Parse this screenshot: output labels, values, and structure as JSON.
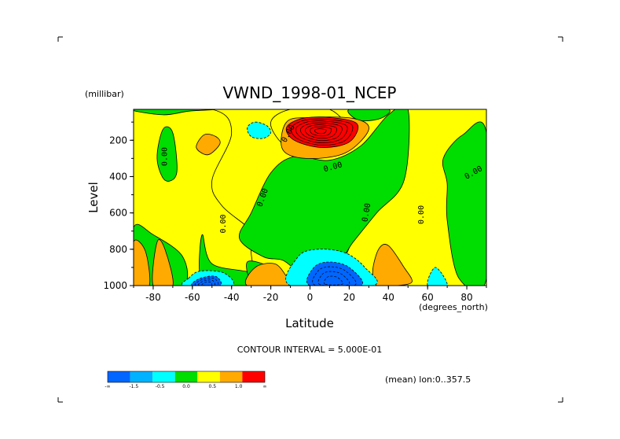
{
  "chart_data": {
    "type": "heatmap",
    "title": "VWND_1998-01_NCEP",
    "xlabel": "Latitude",
    "x_units": "(degrees_north)",
    "ylabel": "Level",
    "y_units": "(millibar)",
    "xlim": [
      -90,
      90
    ],
    "ylim": [
      1000,
      30
    ],
    "x_ticks": [
      -80,
      -60,
      -40,
      -20,
      0,
      20,
      40,
      60,
      80
    ],
    "y_ticks": [
      200,
      400,
      600,
      800,
      1000
    ],
    "contour_interval_text": "CONTOUR INTERVAL = 5.000E-01",
    "footnote": "(mean) lon:0..357.5",
    "colorbar": {
      "colors": [
        "#0066ff",
        "#00b2ff",
        "#00ffff",
        "#00dd00",
        "#ffff00",
        "#ffaa00",
        "#ff0000"
      ],
      "labels": [
        "-∞",
        "-1.5",
        "-0.5",
        "0.0",
        "0.5",
        "1.0",
        "∞"
      ]
    },
    "contour_labels": [
      {
        "text": "0.00",
        "lat": -73,
        "level": 290,
        "rotate": -90
      },
      {
        "text": "0.00",
        "lat": -43,
        "level": 660,
        "rotate": -90
      },
      {
        "text": "0.00",
        "lat": -23,
        "level": 520,
        "rotate": -70
      },
      {
        "text": "0.00",
        "lat": -10,
        "level": 170,
        "rotate": -60
      },
      {
        "text": "0.00",
        "lat": 12,
        "level": 360,
        "rotate": -15
      },
      {
        "text": "0.00",
        "lat": 30,
        "level": 600,
        "rotate": -80
      },
      {
        "text": "0.00",
        "lat": 58,
        "level": 610,
        "rotate": -90
      },
      {
        "text": "0.00",
        "lat": 84,
        "level": 390,
        "rotate": -30
      }
    ],
    "regions": [
      {
        "band": "yellow",
        "level": 0.5,
        "pts": [
          [
            -90,
            30
          ],
          [
            -50,
            30
          ],
          [
            -40,
            160
          ],
          [
            -50,
            420
          ],
          [
            -45,
            560
          ],
          [
            -30,
            700
          ],
          [
            -30,
            800
          ],
          [
            -35,
            1000
          ],
          [
            -90,
            1000
          ]
        ]
      },
      {
        "band": "yellow",
        "level": 0.5,
        "pts": [
          [
            16,
            900
          ],
          [
            30,
            560
          ],
          [
            45,
            270
          ],
          [
            50,
            30
          ],
          [
            90,
            30
          ],
          [
            90,
            1000
          ],
          [
            16,
            1000
          ]
        ]
      },
      {
        "band": "yellow",
        "level": 0.5,
        "pts": [
          [
            -10,
            30
          ],
          [
            10,
            30
          ],
          [
            20,
            160
          ],
          [
            10,
            260
          ],
          [
            -2,
            280
          ],
          [
            -14,
            220
          ],
          [
            -20,
            100
          ]
        ]
      },
      {
        "band": "green",
        "level": 0.0,
        "pts": [
          [
            -90,
            30
          ],
          [
            -75,
            60
          ],
          [
            -62,
            40
          ],
          [
            -50,
            30
          ]
        ]
      },
      {
        "band": "green",
        "level": 0.0,
        "pts": [
          [
            -75,
            140
          ],
          [
            -70,
            160
          ],
          [
            -68,
            380
          ],
          [
            -74,
            420
          ],
          [
            -78,
            300
          ]
        ]
      },
      {
        "band": "green",
        "level": 0.0,
        "pts": [
          [
            -90,
            680
          ],
          [
            -80,
            720
          ],
          [
            -65,
            840
          ],
          [
            -65,
            1000
          ],
          [
            -90,
            1000
          ]
        ]
      },
      {
        "band": "green",
        "level": 0.0,
        "pts": [
          [
            -55,
            720
          ],
          [
            -50,
            880
          ],
          [
            -30,
            930
          ],
          [
            -28,
            1000
          ],
          [
            -48,
            1000
          ],
          [
            -56,
            950
          ]
        ]
      },
      {
        "band": "green",
        "level": 0.0,
        "pts": [
          [
            -32,
            870
          ],
          [
            -20,
            900
          ],
          [
            -10,
            1000
          ],
          [
            -28,
            1000
          ]
        ]
      },
      {
        "band": "green",
        "level": 0.0,
        "pts": [
          [
            -36,
            740
          ],
          [
            -30,
            600
          ],
          [
            -20,
            380
          ],
          [
            -8,
            290
          ],
          [
            10,
            310
          ],
          [
            26,
            230
          ],
          [
            40,
            60
          ],
          [
            50,
            30
          ],
          [
            48,
            420
          ],
          [
            34,
            600
          ],
          [
            22,
            760
          ],
          [
            14,
            870
          ],
          [
            -4,
            920
          ],
          [
            -14,
            860
          ],
          [
            -24,
            840
          ]
        ]
      },
      {
        "band": "green",
        "level": 0.0,
        "pts": [
          [
            68,
            300
          ],
          [
            78,
            170
          ],
          [
            90,
            160
          ],
          [
            90,
            960
          ],
          [
            76,
            960
          ],
          [
            70,
            640
          ],
          [
            70,
            440
          ]
        ]
      },
      {
        "band": "green",
        "level": 0.0,
        "pts": [
          [
            20,
            30
          ],
          [
            40,
            30
          ],
          [
            36,
            80
          ],
          [
            25,
            90
          ]
        ]
      },
      {
        "band": "orange",
        "level": 1.0,
        "pts": [
          [
            -90,
            760
          ],
          [
            -84,
            810
          ],
          [
            -82,
            1000
          ],
          [
            -90,
            1000
          ]
        ]
      },
      {
        "band": "orange",
        "level": 1.0,
        "pts": [
          [
            -78,
            760
          ],
          [
            -74,
            800
          ],
          [
            -70,
            1000
          ],
          [
            -80,
            1000
          ]
        ]
      },
      {
        "band": "orange",
        "level": 1.0,
        "pts": [
          [
            -54,
            170
          ],
          [
            -48,
            180
          ],
          [
            -46,
            220
          ],
          [
            -52,
            280
          ],
          [
            -58,
            240
          ]
        ]
      },
      {
        "band": "orange",
        "level": 1.0,
        "pts": [
          [
            -28,
            900
          ],
          [
            -18,
            880
          ],
          [
            -12,
            950
          ],
          [
            -10,
            1000
          ],
          [
            -32,
            1000
          ]
        ]
      },
      {
        "band": "orange",
        "level": 1.0,
        "pts": [
          [
            -12,
            100
          ],
          [
            0,
            75
          ],
          [
            22,
            80
          ],
          [
            30,
            140
          ],
          [
            18,
            270
          ],
          [
            -2,
            300
          ],
          [
            -14,
            250
          ]
        ]
      },
      {
        "band": "orange",
        "level": 1.0,
        "pts": [
          [
            32,
            920
          ],
          [
            35,
            800
          ],
          [
            40,
            780
          ],
          [
            48,
            900
          ],
          [
            52,
            980
          ],
          [
            44,
            1000
          ],
          [
            34,
            1000
          ]
        ]
      },
      {
        "band": "red",
        "level": 1.5,
        "pts": [
          [
            -12,
            130
          ],
          [
            -4,
            80
          ],
          [
            10,
            75
          ],
          [
            24,
            110
          ],
          [
            20,
            210
          ],
          [
            6,
            240
          ],
          [
            -8,
            200
          ]
        ]
      },
      {
        "band": "cyan",
        "level": -0.5,
        "pts": [
          [
            -28,
            100
          ],
          [
            -22,
            120
          ],
          [
            -20,
            160
          ],
          [
            -24,
            190
          ],
          [
            -30,
            180
          ],
          [
            -32,
            130
          ]
        ]
      },
      {
        "band": "cyan",
        "level": -0.5,
        "pts": [
          [
            -62,
            960
          ],
          [
            -56,
            920
          ],
          [
            -44,
            930
          ],
          [
            -40,
            1000
          ],
          [
            -64,
            1000
          ]
        ]
      },
      {
        "band": "cyan",
        "level": -0.5,
        "pts": [
          [
            -10,
            1000
          ],
          [
            -6,
            840
          ],
          [
            4,
            800
          ],
          [
            18,
            820
          ],
          [
            28,
            900
          ],
          [
            32,
            1000
          ]
        ]
      },
      {
        "band": "cyan",
        "level": -0.5,
        "pts": [
          [
            60,
            1000
          ],
          [
            64,
            900
          ],
          [
            70,
            1000
          ]
        ]
      },
      {
        "band": "blue",
        "level": -1.5,
        "pts": [
          [
            -60,
            1000
          ],
          [
            -56,
            960
          ],
          [
            -48,
            950
          ],
          [
            -46,
            1000
          ]
        ]
      },
      {
        "band": "blue",
        "level": -1.5,
        "pts": [
          [
            0,
            1000
          ],
          [
            2,
            900
          ],
          [
            10,
            870
          ],
          [
            20,
            900
          ],
          [
            26,
            1000
          ]
        ]
      }
    ]
  }
}
